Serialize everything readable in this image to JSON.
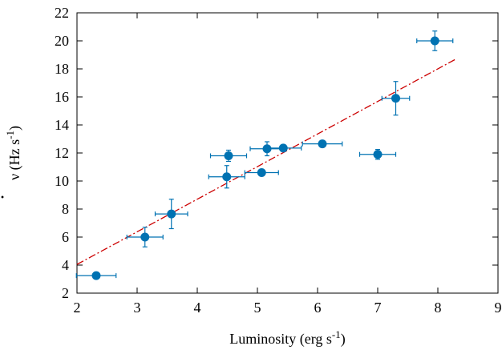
{
  "chart_data": {
    "type": "scatter",
    "title": "",
    "xlabel": {
      "base": "Luminosity (erg s",
      "sup": "-1",
      "close": ")"
    },
    "ylabel": {
      "symbol": "ν",
      "dot": "·",
      "base": " (Hz s",
      "sup": "-1",
      "close": ")"
    },
    "xlim": [
      2,
      9
    ],
    "ylim": [
      2,
      22
    ],
    "xticks": [
      2,
      3,
      4,
      5,
      6,
      7,
      8,
      9
    ],
    "yticks": [
      2,
      4,
      6,
      8,
      10,
      12,
      14,
      16,
      18,
      20,
      22
    ],
    "grid": false,
    "legend": "none",
    "marker_color": "#0072b2",
    "fit_color": "#cc0000",
    "points": [
      {
        "x": 2.32,
        "y": 3.25,
        "xerr": 0.33,
        "yerr": 0.0
      },
      {
        "x": 3.13,
        "y": 6.0,
        "xerr": 0.3,
        "yerr": 0.7
      },
      {
        "x": 3.57,
        "y": 7.65,
        "xerr": 0.27,
        "yerr": 1.05
      },
      {
        "x": 4.49,
        "y": 10.3,
        "xerr": 0.3,
        "yerr": 0.8
      },
      {
        "x": 4.52,
        "y": 11.8,
        "xerr": 0.3,
        "yerr": 0.4
      },
      {
        "x": 5.07,
        "y": 10.6,
        "xerr": 0.28,
        "yerr": 0.0
      },
      {
        "x": 5.16,
        "y": 12.3,
        "xerr": 0.28,
        "yerr": 0.5
      },
      {
        "x": 5.43,
        "y": 12.35,
        "xerr": 0.3,
        "yerr": 0.0
      },
      {
        "x": 6.08,
        "y": 12.65,
        "xerr": 0.33,
        "yerr": 0.0
      },
      {
        "x": 7.0,
        "y": 11.9,
        "xerr": 0.3,
        "yerr": 0.35
      },
      {
        "x": 7.3,
        "y": 15.9,
        "xerr": 0.23,
        "yerr": 1.2
      },
      {
        "x": 7.95,
        "y": 20.0,
        "xerr": 0.3,
        "yerr": 0.7
      }
    ],
    "fit_line": {
      "style": "dash-dot",
      "x": [
        2.0,
        8.3
      ],
      "y": [
        4.05,
        18.7
      ]
    }
  }
}
